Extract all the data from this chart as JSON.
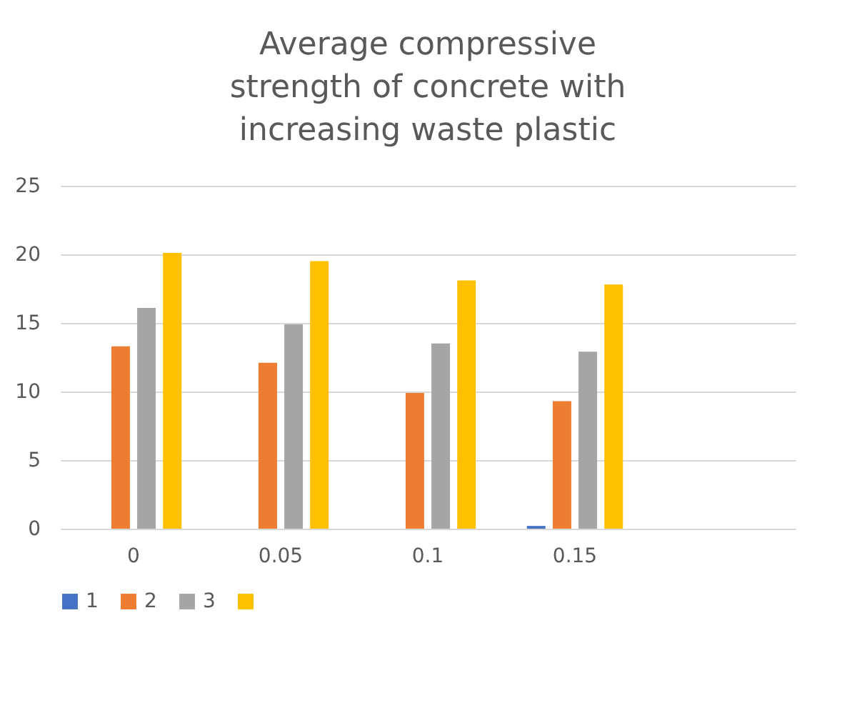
{
  "chart_data": {
    "type": "bar",
    "title": "Average compressive strength of concrete with increasing waste plastic",
    "categories": [
      "0",
      "0.05",
      "0.1",
      "0.15",
      null
    ],
    "series": [
      {
        "name": "1",
        "color": "#4472c4",
        "values": [
          null,
          null,
          null,
          0.2,
          null
        ]
      },
      {
        "name": "2",
        "color": "#ed7d31",
        "values": [
          13.3,
          12.1,
          9.9,
          9.3,
          null
        ]
      },
      {
        "name": "3",
        "color": "#a5a5a5",
        "values": [
          16.1,
          14.9,
          13.5,
          12.9,
          null
        ]
      },
      {
        "color": "#ffc000",
        "values": [
          20.1,
          19.5,
          18.1,
          17.8,
          null
        ]
      }
    ],
    "ylim": [
      0,
      25
    ],
    "yticks": [
      0,
      5,
      10,
      15,
      20,
      25
    ],
    "grid": "y",
    "legend": "bottom"
  }
}
